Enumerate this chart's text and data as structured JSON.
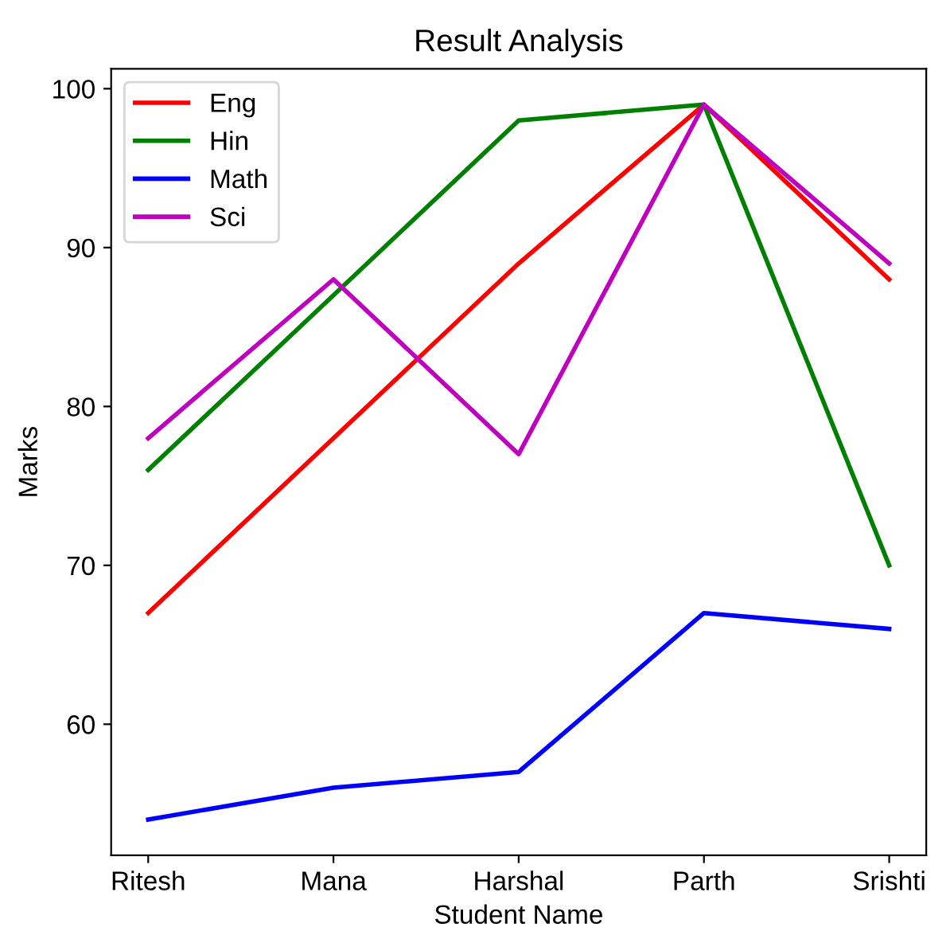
{
  "chart_data": {
    "type": "line",
    "title": "Result Analysis",
    "xlabel": "Student Name",
    "ylabel": "Marks",
    "categories": [
      "Ritesh",
      "Mana",
      "Harshal",
      "Parth",
      "Srishti"
    ],
    "series": [
      {
        "name": "Eng",
        "color": "#ff0000",
        "values": [
          67,
          78,
          89,
          99,
          88
        ]
      },
      {
        "name": "Hin",
        "color": "#008000",
        "values": [
          76,
          87,
          98,
          99,
          70
        ]
      },
      {
        "name": "Math",
        "color": "#0000ff",
        "values": [
          54,
          56,
          57,
          67,
          66
        ]
      },
      {
        "name": "Sci",
        "color": "#bf00bf",
        "values": [
          78,
          88,
          77,
          99,
          89
        ]
      }
    ],
    "ylim": [
      51.75,
      101.25
    ],
    "yticks": [
      60,
      70,
      80,
      90,
      100
    ],
    "grid": false,
    "legend": "top left",
    "marker": "none",
    "line_style": "solid"
  }
}
